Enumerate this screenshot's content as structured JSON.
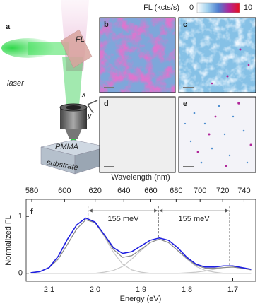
{
  "figure": {
    "panels": [
      "a",
      "b",
      "c",
      "d",
      "e"
    ],
    "schematic": {
      "fl": "FL",
      "laser": "laser",
      "x": "x",
      "y": "y",
      "pmma": "PMMA",
      "substrate": "substrate"
    },
    "colorbar": {
      "label": "FL (kcts/s)",
      "ticks": [
        0,
        10
      ]
    }
  },
  "chart_data": {
    "type": "line",
    "panel": "f",
    "x_label": "Energy (eV)",
    "y_label": "Normalized FL",
    "x2_label": "Wavelength (nm)",
    "xlim": [
      2.15,
      1.65
    ],
    "ylim": [
      -0.14,
      1.3
    ],
    "xticks": [
      2.1,
      {
        "value": 2,
        "label": "2.0"
      },
      1.9,
      1.8,
      1.7
    ],
    "yticks": [
      0,
      1
    ],
    "x2ticks": [
      580,
      600,
      620,
      640,
      660,
      680,
      700,
      720,
      740
    ],
    "x": [
      2.14,
      2.12,
      2.1,
      2.08,
      2.06,
      2.04,
      2.02,
      2.0,
      1.98,
      1.96,
      1.94,
      1.92,
      1.9,
      1.88,
      1.86,
      1.84,
      1.82,
      1.8,
      1.78,
      1.76,
      1.74,
      1.72,
      1.7,
      1.68,
      1.66
    ],
    "series": [
      {
        "color": "#1f1fe0",
        "values": [
          0.01,
          0.03,
          0.1,
          0.3,
          0.6,
          0.85,
          0.97,
          0.9,
          0.68,
          0.45,
          0.35,
          0.38,
          0.48,
          0.58,
          0.62,
          0.58,
          0.45,
          0.28,
          0.16,
          0.11,
          0.11,
          0.13,
          0.13,
          0.1,
          0.07
        ]
      },
      {
        "color": "#8a8a8a",
        "values": [
          0.01,
          0.03,
          0.1,
          0.25,
          0.51,
          0.78,
          0.94,
          0.89,
          0.67,
          0.42,
          0.28,
          0.31,
          0.42,
          0.54,
          0.6,
          0.54,
          0.4,
          0.26,
          0.14,
          0.09,
          0.09,
          0.1,
          0.11,
          0.09,
          0.06
        ]
      },
      {
        "color": "#c8c8c8",
        "values": [
          0.01,
          0.03,
          0.1,
          0.25,
          0.51,
          0.78,
          0.94,
          0.89,
          0.65,
          0.37,
          0.16,
          0.06,
          0.02,
          0,
          0,
          0,
          0,
          0,
          0,
          0,
          0,
          0,
          0,
          0,
          0
        ]
      },
      {
        "color": "#c8c8c8",
        "values": [
          0,
          0,
          0,
          0,
          0,
          0,
          0,
          0,
          0.02,
          0.05,
          0.12,
          0.25,
          0.4,
          0.54,
          0.6,
          0.54,
          0.4,
          0.25,
          0.12,
          0.05,
          0.02,
          0,
          0,
          0,
          0
        ]
      },
      {
        "color": "#c8c8c8",
        "values": [
          0,
          0,
          0,
          0,
          0,
          0,
          0,
          0,
          0,
          0,
          0,
          0,
          0,
          0,
          0,
          0,
          0,
          0.01,
          0.02,
          0.04,
          0.07,
          0.1,
          0.11,
          0.09,
          0.06
        ]
      }
    ],
    "annotations": [
      {
        "text": "155 meV",
        "x1": 2.015,
        "x2": 1.862
      },
      {
        "text": "155 meV",
        "x1": 1.862,
        "x2": 1.707
      }
    ]
  }
}
